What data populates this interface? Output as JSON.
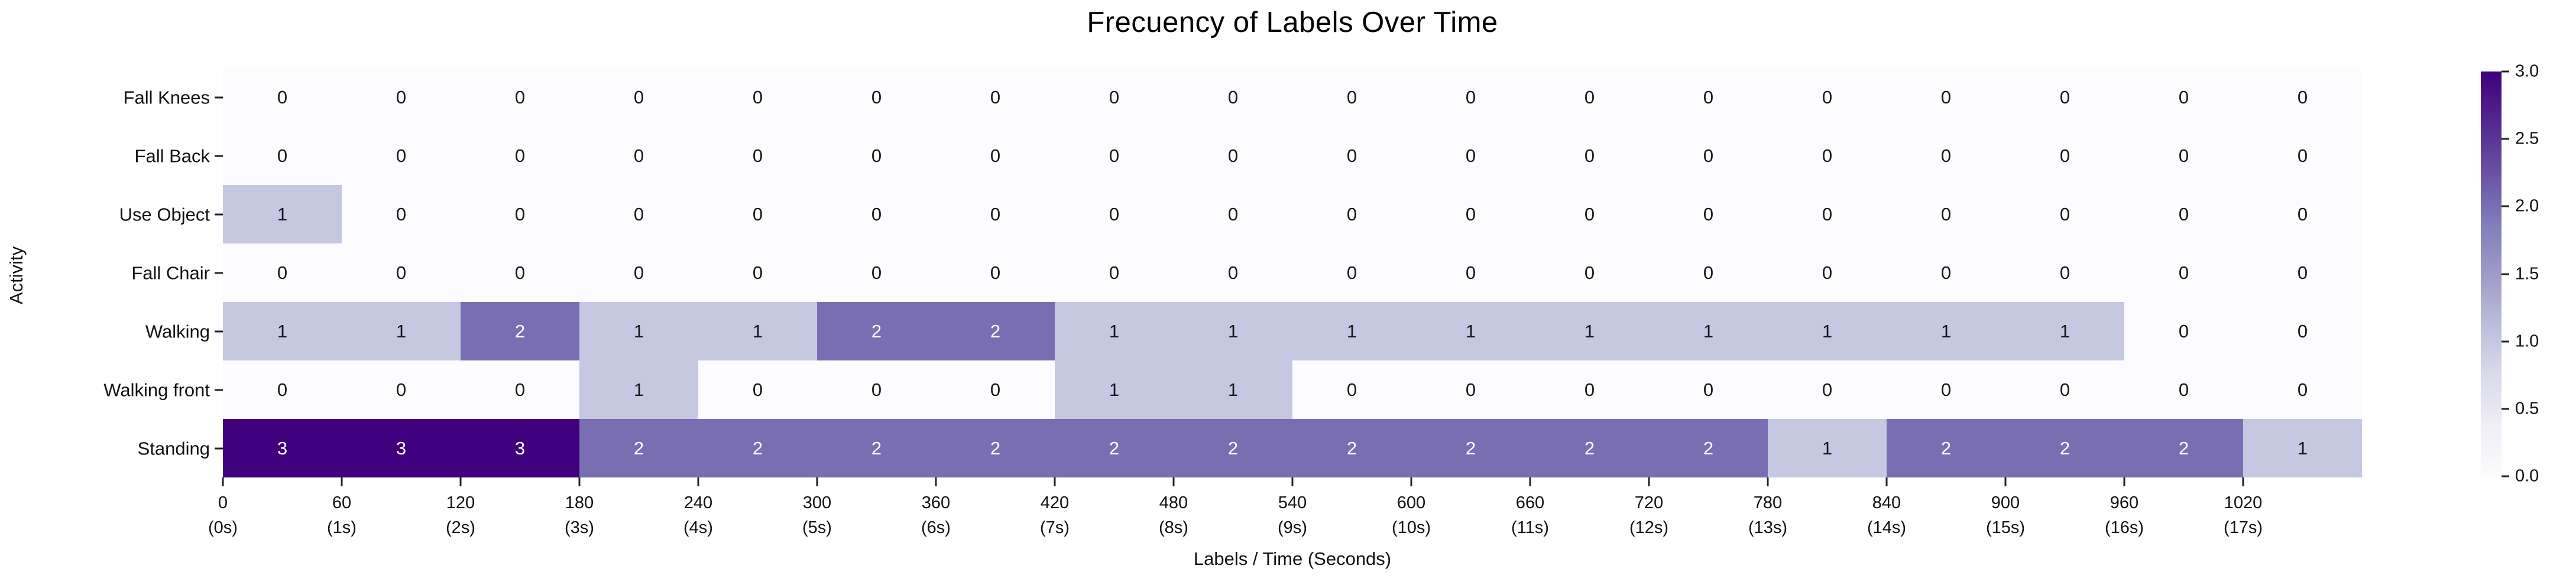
{
  "chart_data": {
    "type": "heatmap",
    "title": "Frecuency of Labels Over Time",
    "xlabel": "Labels / Time (Seconds)",
    "ylabel": "Activity",
    "x_ticks": [
      {
        "label": "0",
        "sub": "(0s)"
      },
      {
        "label": "60",
        "sub": "(1s)"
      },
      {
        "label": "120",
        "sub": "(2s)"
      },
      {
        "label": "180",
        "sub": "(3s)"
      },
      {
        "label": "240",
        "sub": "(4s)"
      },
      {
        "label": "300",
        "sub": "(5s)"
      },
      {
        "label": "360",
        "sub": "(6s)"
      },
      {
        "label": "420",
        "sub": "(7s)"
      },
      {
        "label": "480",
        "sub": "(8s)"
      },
      {
        "label": "540",
        "sub": "(9s)"
      },
      {
        "label": "600",
        "sub": "(10s)"
      },
      {
        "label": "660",
        "sub": "(11s)"
      },
      {
        "label": "720",
        "sub": "(12s)"
      },
      {
        "label": "780",
        "sub": "(13s)"
      },
      {
        "label": "840",
        "sub": "(14s)"
      },
      {
        "label": "900",
        "sub": "(15s)"
      },
      {
        "label": "960",
        "sub": "(16s)"
      },
      {
        "label": "1020",
        "sub": "(17s)"
      }
    ],
    "rows": [
      {
        "label": "Fall Knees",
        "values": [
          0,
          0,
          0,
          0,
          0,
          0,
          0,
          0,
          0,
          0,
          0,
          0,
          0,
          0,
          0,
          0,
          0,
          0
        ]
      },
      {
        "label": "Fall Back",
        "values": [
          0,
          0,
          0,
          0,
          0,
          0,
          0,
          0,
          0,
          0,
          0,
          0,
          0,
          0,
          0,
          0,
          0,
          0
        ]
      },
      {
        "label": "Use Object",
        "values": [
          1,
          0,
          0,
          0,
          0,
          0,
          0,
          0,
          0,
          0,
          0,
          0,
          0,
          0,
          0,
          0,
          0,
          0
        ]
      },
      {
        "label": "Fall Chair",
        "values": [
          0,
          0,
          0,
          0,
          0,
          0,
          0,
          0,
          0,
          0,
          0,
          0,
          0,
          0,
          0,
          0,
          0,
          0
        ]
      },
      {
        "label": "Walking",
        "values": [
          1,
          1,
          2,
          1,
          1,
          2,
          2,
          1,
          1,
          1,
          1,
          1,
          1,
          1,
          1,
          1,
          0,
          0
        ]
      },
      {
        "label": "Walking front",
        "values": [
          0,
          0,
          0,
          1,
          0,
          0,
          0,
          1,
          1,
          0,
          0,
          0,
          0,
          0,
          0,
          0,
          0,
          0
        ]
      },
      {
        "label": "Standing",
        "values": [
          3,
          3,
          3,
          2,
          2,
          2,
          2,
          2,
          2,
          2,
          2,
          2,
          2,
          1,
          2,
          2,
          2,
          1
        ]
      }
    ],
    "vmin": 0.0,
    "vmax": 3.0,
    "colorbar_ticks": [
      "3.0",
      "2.5",
      "2.0",
      "1.5",
      "1.0",
      "0.5",
      "0.0"
    ],
    "value_colors": {
      "0": "#fcfbfd",
      "1": "#c6c7e1",
      "2": "#796eb2",
      "3": "#3f007d"
    },
    "annotation_colors": {
      "dark": "#161616",
      "light": "#ffffff"
    },
    "colorbar_gradient_top_to_bottom": [
      "#3f007d",
      "#54278f",
      "#6a51a3",
      "#807dba",
      "#9e9ac8",
      "#bcbddc",
      "#dadaeb",
      "#efedf5",
      "#fcfbfd"
    ],
    "tick_color": "#222222"
  }
}
